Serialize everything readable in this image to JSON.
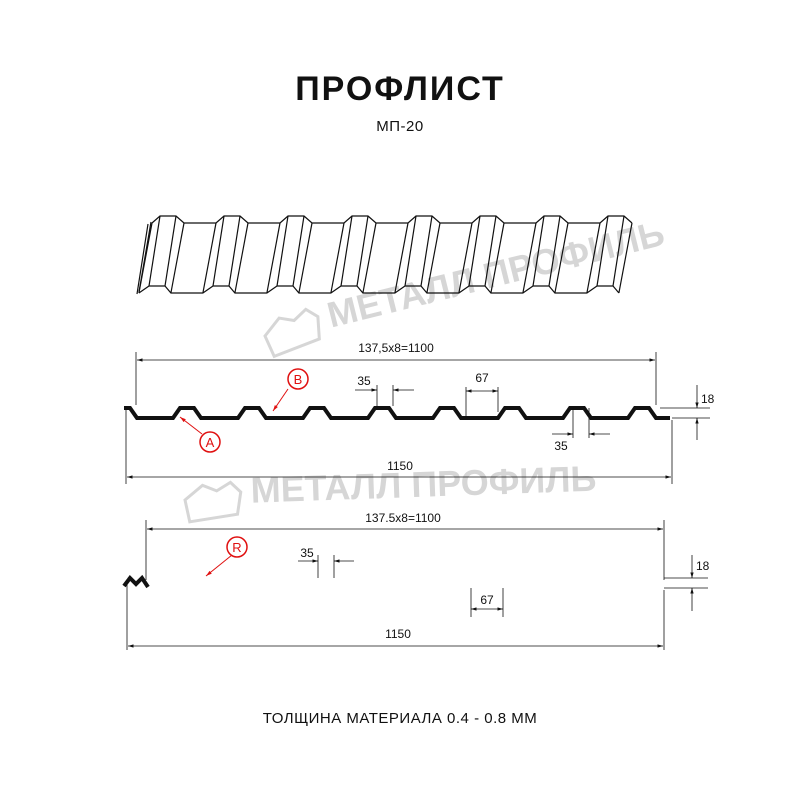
{
  "title": "ПРОФЛИСТ",
  "subtitle": "МП-20",
  "watermark": "МЕТАЛЛ ПРОФИЛЬ",
  "profile_a": {
    "pitch_label": "137,5x8=1100",
    "crest_width": "35",
    "valley_width": "67",
    "bottom_crest_width": "35",
    "height": "18",
    "total_width": "1150",
    "callouts": [
      "B",
      "A"
    ]
  },
  "profile_r": {
    "pitch_label": "137.5x8=1100",
    "crest_width": "35",
    "valley_width": "67",
    "height": "18",
    "total_width": "1150",
    "callouts": [
      "R"
    ]
  },
  "footer": "ТОЛЩИНА МАТЕРИАЛА 0.4 - 0.8 ММ",
  "colors": {
    "line": "#111111",
    "callout": "#e01010",
    "watermark": "#d6d6d6"
  }
}
